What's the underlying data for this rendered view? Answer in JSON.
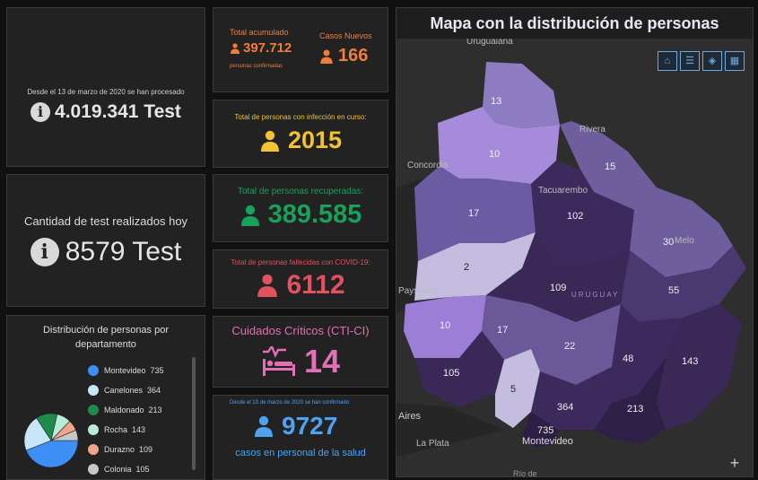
{
  "tests_total": {
    "caption": "Desde el 13 de marzo de 2020 se han procesado",
    "value": "4.019.341 Test"
  },
  "tests_today": {
    "caption": "Cantidad de test realizados hoy",
    "value": "8579 Test"
  },
  "accumulated": {
    "label": "Total acumulado",
    "value": "397.712",
    "sub": "personas confirmadas",
    "new_label": "Casos Nuevos",
    "new_value": "166",
    "color": "#f07d3c"
  },
  "active": {
    "label": "Total de personas con infección en curso:",
    "value": "2015",
    "color": "#f2c232"
  },
  "recovered": {
    "label": "Total de personas recuperadas:",
    "value": "389.585",
    "color": "#19a05a"
  },
  "deceased": {
    "label": "Total de personas fallecidas con COVID-19:",
    "value": "6112",
    "color": "#e2515f"
  },
  "critical": {
    "label": "Cuidados Críticos (CTI-CI)",
    "value": "14",
    "color": "#e36fb4"
  },
  "health_staff": {
    "caption": "Desde el 13 de marzo de 2020 se han confirmado",
    "value": "9727",
    "sub": "casos en personal de la salud",
    "color": "#4da3f0"
  },
  "distribution": {
    "title": "Distribución de personas por departamento",
    "items": [
      {
        "name": "Montevideo",
        "value": "735",
        "color": "#3d8ef5"
      },
      {
        "name": "Canelones",
        "value": "364",
        "color": "#c8e6f8"
      },
      {
        "name": "Maldonado",
        "value": "213",
        "color": "#1f8a4c"
      },
      {
        "name": "Rocha",
        "value": "143",
        "color": "#b8ecd8"
      },
      {
        "name": "Durazno",
        "value": "109",
        "color": "#f0a48a"
      },
      {
        "name": "Colonia",
        "value": "105",
        "color": "#c8c8c8"
      }
    ]
  },
  "map": {
    "title": "Mapa con la distribución de personas",
    "place_labels": [
      "Uruguaiana",
      "Rivera",
      "Concordia",
      "Tacuarembo",
      "Melo",
      "Paysandu",
      "URUGUAY",
      "Aires",
      "La Plata",
      "Montevideo",
      "Río de"
    ],
    "regions": [
      "13",
      "10",
      "15",
      "17",
      "102",
      "30",
      "2",
      "109",
      "55",
      "10",
      "17",
      "22",
      "105",
      "48",
      "143",
      "5",
      "364",
      "213",
      "735"
    ],
    "buttons": [
      "home-icon",
      "list-icon",
      "layers-icon",
      "grid-icon"
    ],
    "zoom": "+"
  },
  "chart_data": {
    "type": "pie",
    "categories": [
      "Montevideo",
      "Canelones",
      "Maldonado",
      "Rocha",
      "Durazno",
      "Colonia"
    ],
    "values": [
      735,
      364,
      213,
      143,
      109,
      105
    ],
    "title": "Distribución de personas por departamento"
  }
}
